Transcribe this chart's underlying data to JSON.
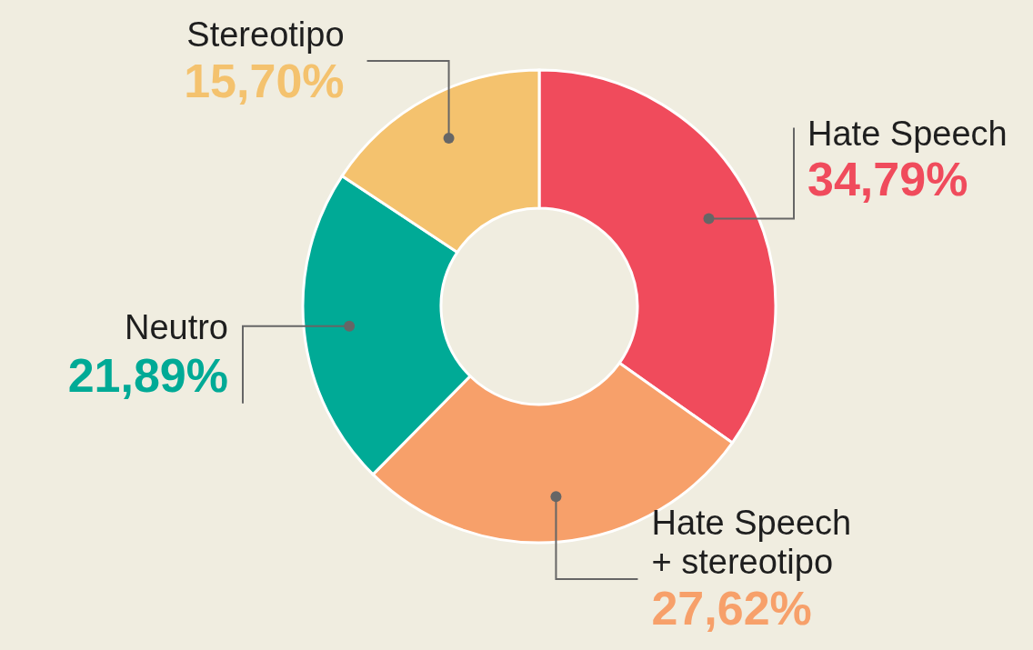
{
  "chart_data": {
    "type": "donut",
    "categories": [
      "Hate Speech",
      "Hate Speech + stereotipo",
      "Neutro",
      "Stereotipo"
    ],
    "values": [
      34.79,
      27.62,
      21.89,
      15.7
    ],
    "colors": [
      "#f04b5c",
      "#f7a06a",
      "#00aa96",
      "#f4c26e"
    ],
    "value_labels": [
      "34,79%",
      "27,62%",
      "21,89%",
      "15,70%"
    ],
    "legend": false
  }
}
